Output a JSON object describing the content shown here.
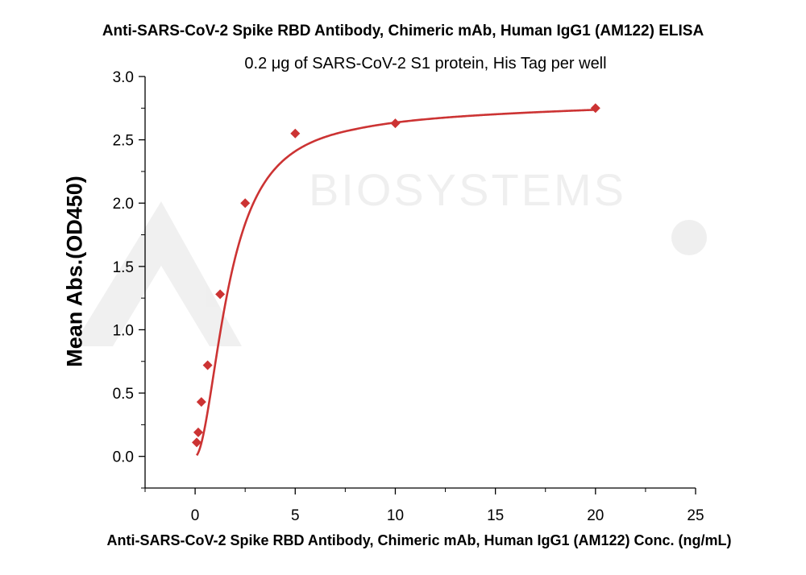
{
  "chart_data": {
    "type": "scatter",
    "title": "Anti-SARS-CoV-2 Spike RBD Antibody, Chimeric mAb, Human IgG1 (AM122) ELISA",
    "subtitle": "0.2 μg of SARS-CoV-2 S1 protein, His Tag per well",
    "xlabel": "Anti-SARS-CoV-2 Spike RBD Antibody, Chimeric mAb, Human IgG1 (AM122) Conc. (ng/mL)",
    "ylabel": "Mean Abs.(OD450)",
    "xlim": [
      -2.5,
      25
    ],
    "ylim": [
      -0.25,
      3.0
    ],
    "xticks": [
      "0",
      "5",
      "10",
      "15",
      "20",
      "25"
    ],
    "xtick_values": [
      0,
      5,
      10,
      15,
      20,
      25
    ],
    "yticks": [
      "0.0",
      "0.5",
      "1.0",
      "1.5",
      "2.0",
      "2.5",
      "3.0"
    ],
    "ytick_values": [
      0,
      0.5,
      1.0,
      1.5,
      2.0,
      2.5,
      3.0
    ],
    "grid": false,
    "series": [
      {
        "color": "#cc3333",
        "marker": "diamond",
        "fit_curve": true,
        "x": [
          0.156,
          0.3125,
          0.625,
          1.25,
          2.5,
          5,
          10,
          20,
          0.078
        ],
        "y": [
          0.19,
          0.43,
          0.72,
          1.28,
          2.0,
          2.55,
          2.63,
          2.75,
          0.11
        ]
      }
    ],
    "watermark": "BIOSYSTEMS"
  }
}
